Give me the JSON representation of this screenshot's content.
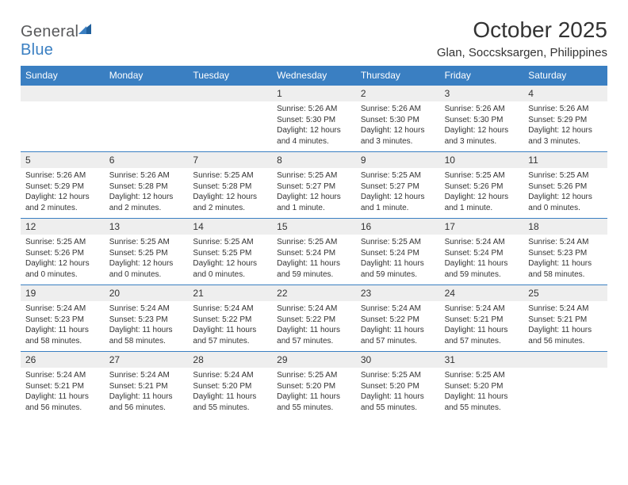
{
  "logo": {
    "word1": "General",
    "word2": "Blue"
  },
  "title": "October 2025",
  "location": "Glan, Soccsksargen, Philippines",
  "colors": {
    "header_bg": "#3a7fc2",
    "daynum_bg": "#eeeeee",
    "border": "#3a7fc2",
    "page_bg": "#ffffff",
    "text": "#333333",
    "logo_gray": "#58595b",
    "logo_blue": "#3a7fc2"
  },
  "day_names": [
    "Sunday",
    "Monday",
    "Tuesday",
    "Wednesday",
    "Thursday",
    "Friday",
    "Saturday"
  ],
  "weeks": [
    [
      {
        "n": "",
        "sr": "",
        "ss": "",
        "dl": ""
      },
      {
        "n": "",
        "sr": "",
        "ss": "",
        "dl": ""
      },
      {
        "n": "",
        "sr": "",
        "ss": "",
        "dl": ""
      },
      {
        "n": "1",
        "sr": "Sunrise: 5:26 AM",
        "ss": "Sunset: 5:30 PM",
        "dl": "Daylight: 12 hours and 4 minutes."
      },
      {
        "n": "2",
        "sr": "Sunrise: 5:26 AM",
        "ss": "Sunset: 5:30 PM",
        "dl": "Daylight: 12 hours and 3 minutes."
      },
      {
        "n": "3",
        "sr": "Sunrise: 5:26 AM",
        "ss": "Sunset: 5:30 PM",
        "dl": "Daylight: 12 hours and 3 minutes."
      },
      {
        "n": "4",
        "sr": "Sunrise: 5:26 AM",
        "ss": "Sunset: 5:29 PM",
        "dl": "Daylight: 12 hours and 3 minutes."
      }
    ],
    [
      {
        "n": "5",
        "sr": "Sunrise: 5:26 AM",
        "ss": "Sunset: 5:29 PM",
        "dl": "Daylight: 12 hours and 2 minutes."
      },
      {
        "n": "6",
        "sr": "Sunrise: 5:26 AM",
        "ss": "Sunset: 5:28 PM",
        "dl": "Daylight: 12 hours and 2 minutes."
      },
      {
        "n": "7",
        "sr": "Sunrise: 5:25 AM",
        "ss": "Sunset: 5:28 PM",
        "dl": "Daylight: 12 hours and 2 minutes."
      },
      {
        "n": "8",
        "sr": "Sunrise: 5:25 AM",
        "ss": "Sunset: 5:27 PM",
        "dl": "Daylight: 12 hours and 1 minute."
      },
      {
        "n": "9",
        "sr": "Sunrise: 5:25 AM",
        "ss": "Sunset: 5:27 PM",
        "dl": "Daylight: 12 hours and 1 minute."
      },
      {
        "n": "10",
        "sr": "Sunrise: 5:25 AM",
        "ss": "Sunset: 5:26 PM",
        "dl": "Daylight: 12 hours and 1 minute."
      },
      {
        "n": "11",
        "sr": "Sunrise: 5:25 AM",
        "ss": "Sunset: 5:26 PM",
        "dl": "Daylight: 12 hours and 0 minutes."
      }
    ],
    [
      {
        "n": "12",
        "sr": "Sunrise: 5:25 AM",
        "ss": "Sunset: 5:26 PM",
        "dl": "Daylight: 12 hours and 0 minutes."
      },
      {
        "n": "13",
        "sr": "Sunrise: 5:25 AM",
        "ss": "Sunset: 5:25 PM",
        "dl": "Daylight: 12 hours and 0 minutes."
      },
      {
        "n": "14",
        "sr": "Sunrise: 5:25 AM",
        "ss": "Sunset: 5:25 PM",
        "dl": "Daylight: 12 hours and 0 minutes."
      },
      {
        "n": "15",
        "sr": "Sunrise: 5:25 AM",
        "ss": "Sunset: 5:24 PM",
        "dl": "Daylight: 11 hours and 59 minutes."
      },
      {
        "n": "16",
        "sr": "Sunrise: 5:25 AM",
        "ss": "Sunset: 5:24 PM",
        "dl": "Daylight: 11 hours and 59 minutes."
      },
      {
        "n": "17",
        "sr": "Sunrise: 5:24 AM",
        "ss": "Sunset: 5:24 PM",
        "dl": "Daylight: 11 hours and 59 minutes."
      },
      {
        "n": "18",
        "sr": "Sunrise: 5:24 AM",
        "ss": "Sunset: 5:23 PM",
        "dl": "Daylight: 11 hours and 58 minutes."
      }
    ],
    [
      {
        "n": "19",
        "sr": "Sunrise: 5:24 AM",
        "ss": "Sunset: 5:23 PM",
        "dl": "Daylight: 11 hours and 58 minutes."
      },
      {
        "n": "20",
        "sr": "Sunrise: 5:24 AM",
        "ss": "Sunset: 5:23 PM",
        "dl": "Daylight: 11 hours and 58 minutes."
      },
      {
        "n": "21",
        "sr": "Sunrise: 5:24 AM",
        "ss": "Sunset: 5:22 PM",
        "dl": "Daylight: 11 hours and 57 minutes."
      },
      {
        "n": "22",
        "sr": "Sunrise: 5:24 AM",
        "ss": "Sunset: 5:22 PM",
        "dl": "Daylight: 11 hours and 57 minutes."
      },
      {
        "n": "23",
        "sr": "Sunrise: 5:24 AM",
        "ss": "Sunset: 5:22 PM",
        "dl": "Daylight: 11 hours and 57 minutes."
      },
      {
        "n": "24",
        "sr": "Sunrise: 5:24 AM",
        "ss": "Sunset: 5:21 PM",
        "dl": "Daylight: 11 hours and 57 minutes."
      },
      {
        "n": "25",
        "sr": "Sunrise: 5:24 AM",
        "ss": "Sunset: 5:21 PM",
        "dl": "Daylight: 11 hours and 56 minutes."
      }
    ],
    [
      {
        "n": "26",
        "sr": "Sunrise: 5:24 AM",
        "ss": "Sunset: 5:21 PM",
        "dl": "Daylight: 11 hours and 56 minutes."
      },
      {
        "n": "27",
        "sr": "Sunrise: 5:24 AM",
        "ss": "Sunset: 5:21 PM",
        "dl": "Daylight: 11 hours and 56 minutes."
      },
      {
        "n": "28",
        "sr": "Sunrise: 5:24 AM",
        "ss": "Sunset: 5:20 PM",
        "dl": "Daylight: 11 hours and 55 minutes."
      },
      {
        "n": "29",
        "sr": "Sunrise: 5:25 AM",
        "ss": "Sunset: 5:20 PM",
        "dl": "Daylight: 11 hours and 55 minutes."
      },
      {
        "n": "30",
        "sr": "Sunrise: 5:25 AM",
        "ss": "Sunset: 5:20 PM",
        "dl": "Daylight: 11 hours and 55 minutes."
      },
      {
        "n": "31",
        "sr": "Sunrise: 5:25 AM",
        "ss": "Sunset: 5:20 PM",
        "dl": "Daylight: 11 hours and 55 minutes."
      },
      {
        "n": "",
        "sr": "",
        "ss": "",
        "dl": ""
      }
    ]
  ]
}
